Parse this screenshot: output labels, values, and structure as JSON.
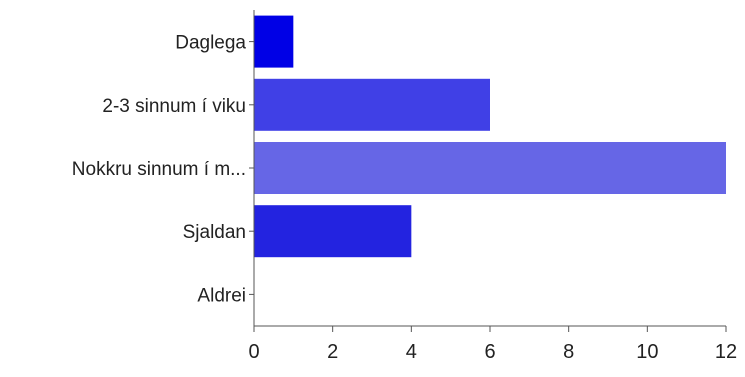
{
  "chart_data": {
    "type": "bar",
    "orientation": "horizontal",
    "categories": [
      "Daglega",
      "2-3 sinnum í viku",
      "Nokkru sinnum í m...",
      "Sjaldan",
      "Aldrei"
    ],
    "values": [
      1,
      6,
      12,
      4,
      0
    ],
    "bar_colors": [
      "#0000e6",
      "#4040e6",
      "#6666e6",
      "#2323e0",
      "#0000e6"
    ],
    "xlim": [
      0,
      12
    ],
    "x_ticks": [
      0,
      2,
      4,
      6,
      8,
      10,
      12
    ],
    "grid": false,
    "legend": "none"
  }
}
